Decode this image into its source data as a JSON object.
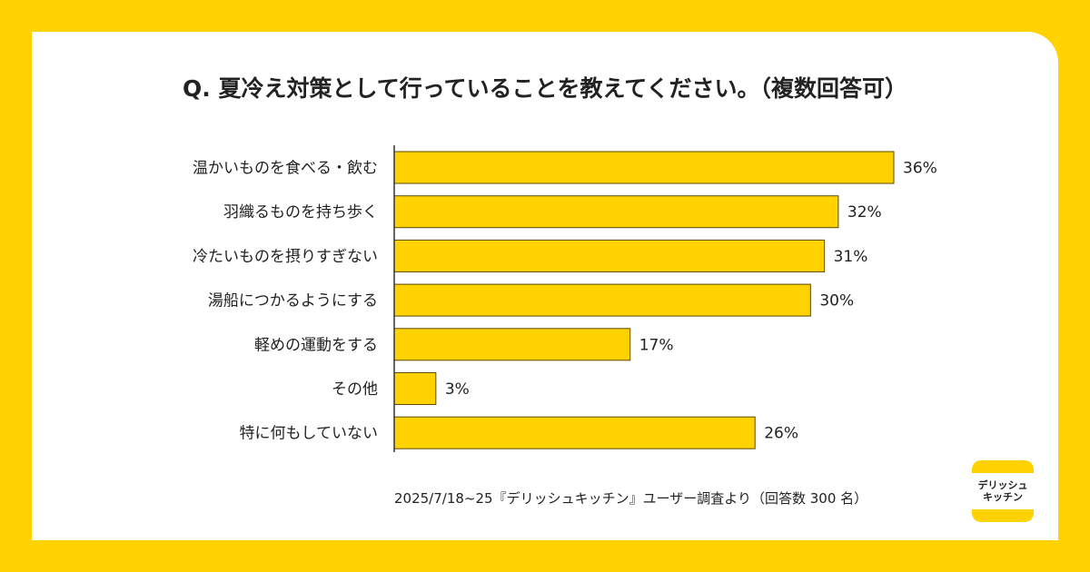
{
  "title": "Q. 夏冷え対策として行っていることを教えてください。（複数回答可）",
  "source_note": "2025/7/18~25『デリッシュキッチン』ユーザー調査より（回答数 300 名）",
  "logo": {
    "line1": "デリッシュ",
    "line2": "キッチン"
  },
  "colors": {
    "bar": "#ffd200",
    "bar_stroke": "#5a4a00",
    "background": "#ffd200"
  },
  "chart_data": {
    "type": "bar",
    "orientation": "horizontal",
    "title": "Q. 夏冷え対策として行っていることを教えてください。（複数回答可）",
    "categories": [
      "温かいものを食べる・飲む",
      "羽織るものを持ち歩く",
      "冷たいものを摂りすぎない",
      "湯船につかるようにする",
      "軽めの運動をする",
      "その他",
      "特に何もしていない"
    ],
    "values": [
      36,
      32,
      31,
      30,
      17,
      3,
      26
    ],
    "unit": "%",
    "xlim": [
      0,
      36
    ],
    "grid": false
  }
}
